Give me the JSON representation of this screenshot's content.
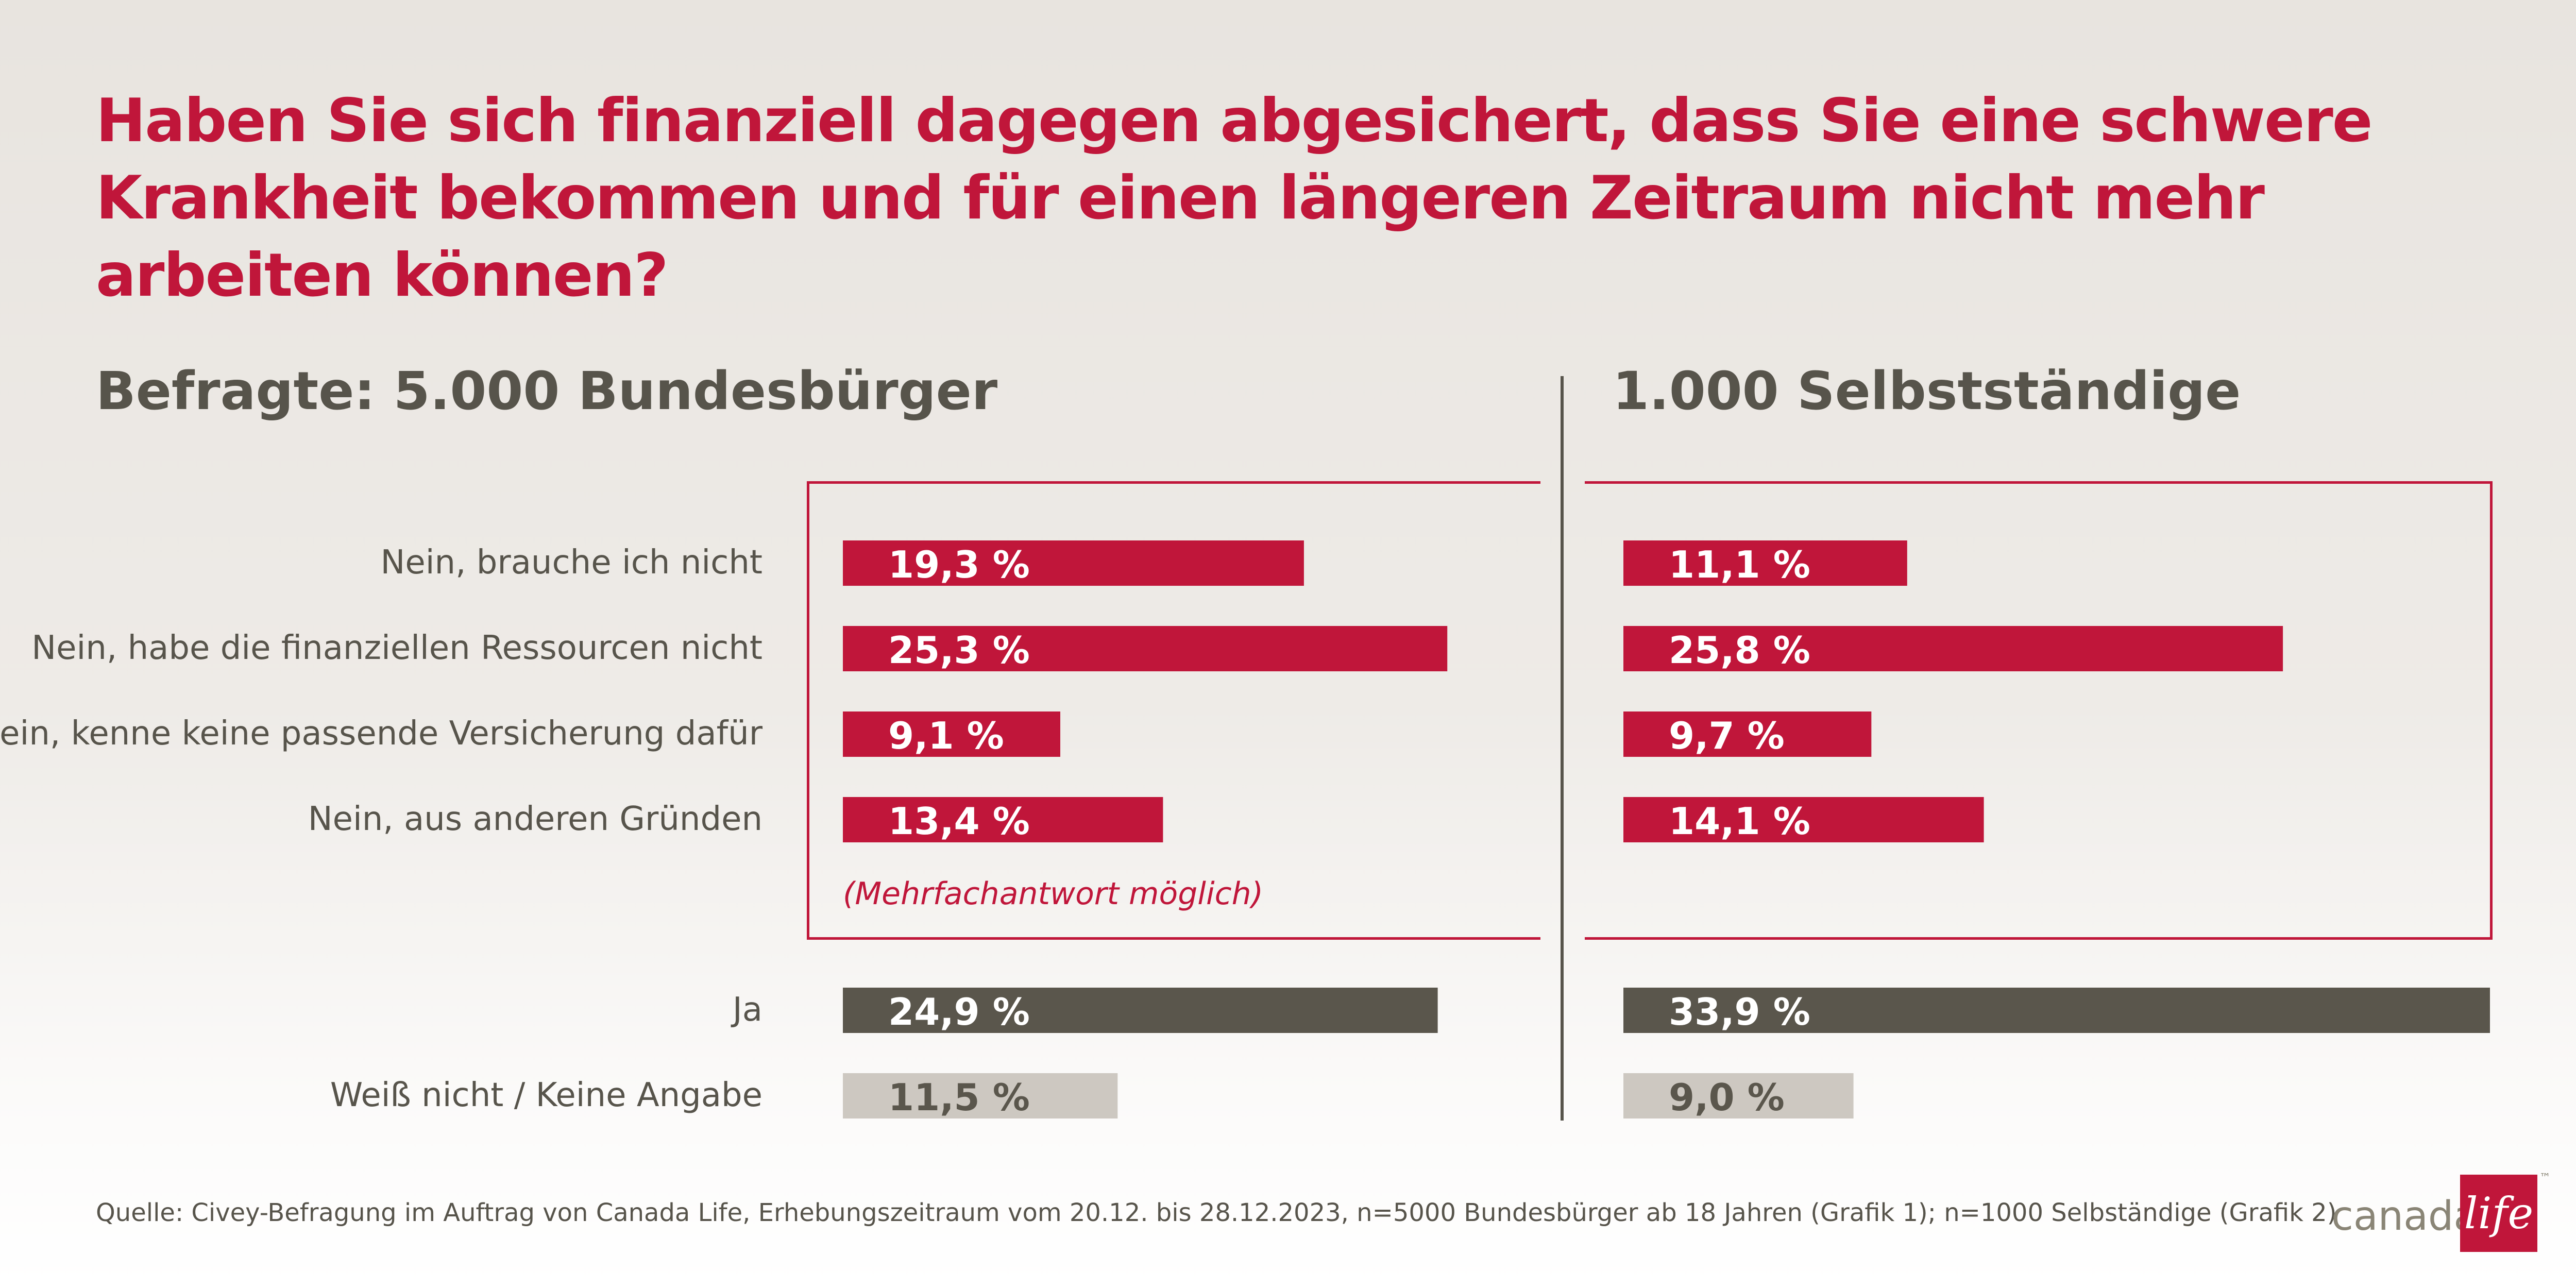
{
  "title": "Haben Sie sich finanziell dagegen abgesichert, dass Sie eine schwere Krankheit bekommen und für einen längeren Zeitraum nicht mehr arbeiten können?",
  "panel_left_heading": "Befragte: 5.000 Bundesbürger",
  "panel_right_heading": "1.000 Selbstständige",
  "note": "(Mehrfachantwort möglich)",
  "source": "Quelle: Civey-Befragung im Auftrag von Canada Life, Erhebungszeitraum vom 20.12. bis 28.12.2023, n=5000 Bundesbürger ab 18 Jahren (Grafik 1); n=1000 Selbständige (Grafik 2)",
  "logo": {
    "word": "canada",
    "box_text": "life",
    "tm": "™"
  },
  "colors": {
    "red": "#c0163a",
    "dark": "#5a564c",
    "light": "#cdc8c1",
    "text": "#57544b"
  },
  "chart_data": [
    {
      "type": "bar",
      "orientation": "horizontal",
      "title": "Befragte: 5.000 Bundesbürger",
      "xlim": [
        0,
        27
      ],
      "categories": [
        "Nein, brauche ich nicht",
        "Nein, habe die finanziellen Ressourcen nicht",
        "Nein, kenne keine passende Versicherung dafür",
        "Nein, aus anderen Gründen",
        "Ja",
        "Weiß nicht  /  Keine Angabe"
      ],
      "values": [
        19.3,
        25.3,
        9.1,
        13.4,
        24.9,
        11.5
      ],
      "labels": [
        "19,3 %",
        "25,3 %",
        "9,1 %",
        "13,4 %",
        "24,9 %",
        "11,5 %"
      ],
      "bar_colors": [
        "#c0163a",
        "#c0163a",
        "#c0163a",
        "#c0163a",
        "#5a564c",
        "#cdc8c1"
      ]
    },
    {
      "type": "bar",
      "orientation": "horizontal",
      "title": "1.000 Selbstständige",
      "xlim": [
        0,
        34
      ],
      "categories": [
        "Nein, brauche ich nicht",
        "Nein, habe die finanziellen Ressourcen nicht",
        "Nein, kenne keine passende Versicherung dafür",
        "Nein, aus anderen Gründen",
        "Ja",
        "Weiß nicht  /  Keine Angabe"
      ],
      "values": [
        11.1,
        25.8,
        9.7,
        14.1,
        33.9,
        9.0
      ],
      "labels": [
        "11,1 %",
        "25,8 %",
        "9,7 %",
        "14,1 %",
        "33,9 %",
        "9,0 %"
      ],
      "bar_colors": [
        "#c0163a",
        "#c0163a",
        "#c0163a",
        "#c0163a",
        "#5a564c",
        "#cdc8c1"
      ]
    }
  ]
}
